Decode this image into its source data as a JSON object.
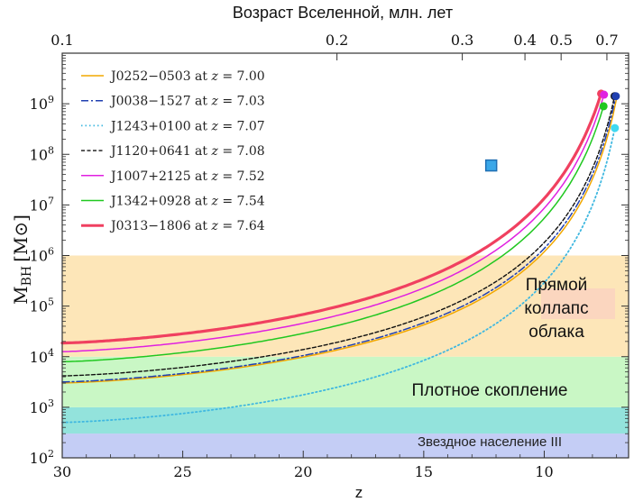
{
  "chart_data": {
    "type": "line",
    "title": "Возраст Вселенной, млн. лет",
    "xlabel": "z",
    "ylabel_main": "M",
    "ylabel_sub": "BH",
    "ylabel_unit": "[M⊙]",
    "xlim": [
      30,
      6.5
    ],
    "ylim_log10": [
      2,
      10
    ],
    "x_ticks": [
      30,
      25,
      20,
      15,
      10
    ],
    "y_ticks": [
      {
        "exp": 2,
        "base": "10",
        "sup": "2"
      },
      {
        "exp": 3,
        "base": "10",
        "sup": "3"
      },
      {
        "exp": 4,
        "base": "10",
        "sup": "4"
      },
      {
        "exp": 5,
        "base": "10",
        "sup": "5"
      },
      {
        "exp": 6,
        "base": "10",
        "sup": "6"
      },
      {
        "exp": 7,
        "base": "10",
        "sup": "7"
      },
      {
        "exp": 8,
        "base": "10",
        "sup": "8"
      },
      {
        "exp": 9,
        "base": "10",
        "sup": "9"
      }
    ],
    "top_ticks": [
      {
        "z": 30,
        "label": "0.1"
      },
      {
        "z": 18.6,
        "label": "0.2"
      },
      {
        "z": 13.4,
        "label": "0.3"
      },
      {
        "z": 10.8,
        "label": "0.4"
      },
      {
        "z": 9.3,
        "label": "0.5"
      },
      {
        "z": 7.4,
        "label": "0.7"
      }
    ],
    "regions": [
      {
        "name": "pop3",
        "label": "Звездное население III",
        "ymin_log10": 2.0,
        "ymax_log10": 2.48,
        "color": "#c4cdf5"
      },
      {
        "name": "overlap",
        "label": "",
        "ymin_log10": 2.48,
        "ymax_log10": 3.0,
        "color": "#93e3dc"
      },
      {
        "name": "cluster",
        "label": "Плотное скопление",
        "ymin_log10": 3.0,
        "ymax_log10": 4.0,
        "color": "#c9f7c5"
      },
      {
        "name": "collapse",
        "label": "Прямой коллапс облака",
        "label_lines": [
          "Прямой",
          "коллапс",
          "облака"
        ],
        "ymin_log10": 4.0,
        "ymax_log10": 6.0,
        "color": "#fde6b8"
      }
    ],
    "series": [
      {
        "name": "J0252−0503",
        "z": "7.00",
        "color": "#f2a800",
        "dash": "",
        "width": 1.5,
        "start_log10": 3.48,
        "end_z": 7.0,
        "end_log10": 9.1
      },
      {
        "name": "J0038−1527",
        "z": "7.03",
        "color": "#2040b0",
        "dash": "8,3,2,3",
        "width": 1.5,
        "start_log10": 3.5,
        "end_z": 7.03,
        "end_log10": 9.15
      },
      {
        "name": "J1243+0100",
        "z": "7.07",
        "color": "#40b8e0",
        "dash": "1.5,3",
        "width": 1.8,
        "start_log10": 2.7,
        "end_z": 7.07,
        "end_log10": 8.52
      },
      {
        "name": "J1120+0641",
        "z": "7.08",
        "color": "#111111",
        "dash": "4,2.5",
        "width": 1.4,
        "start_log10": 3.62,
        "end_z": 7.08,
        "end_log10": 9.15
      },
      {
        "name": "J1007+2125",
        "z": "7.52",
        "color": "#e020e0",
        "dash": "",
        "width": 1.5,
        "start_log10": 4.1,
        "end_z": 7.52,
        "end_log10": 9.18
      },
      {
        "name": "J1342+0928",
        "z": "7.54",
        "color": "#20c820",
        "dash": "",
        "width": 1.5,
        "start_log10": 3.9,
        "end_z": 7.54,
        "end_log10": 8.95
      },
      {
        "name": "J0313−1806",
        "z": "7.64",
        "color": "#f04060",
        "dash": "",
        "width": 3.2,
        "start_log10": 4.27,
        "end_z": 7.64,
        "end_log10": 9.2
      }
    ],
    "end_points": [
      {
        "series": "J0313−1806",
        "z": 7.64,
        "log10": 9.2,
        "color": "#f04060"
      },
      {
        "series": "J1007+2125",
        "z": 7.52,
        "log10": 9.18,
        "color": "#e020e0"
      },
      {
        "series": "J1342+0928",
        "z": 7.54,
        "log10": 8.95,
        "color": "#20c820"
      },
      {
        "series": "J1120+0641",
        "z": 7.08,
        "log10": 9.15,
        "color": "#111111"
      },
      {
        "series": "J0038−1527",
        "z": 7.03,
        "log10": 9.15,
        "color": "#2040b0"
      },
      {
        "series": "J1243+0100",
        "z": 7.07,
        "log10": 8.52,
        "color": "#40d8f0"
      }
    ],
    "marker": {
      "z": 12.2,
      "log10": 7.78,
      "shape": "square",
      "color": "#3aa7e8"
    },
    "legend_position": "top-left",
    "legend_at_text": "at",
    "legend_z_symbol": "z",
    "legend_eq": "="
  }
}
